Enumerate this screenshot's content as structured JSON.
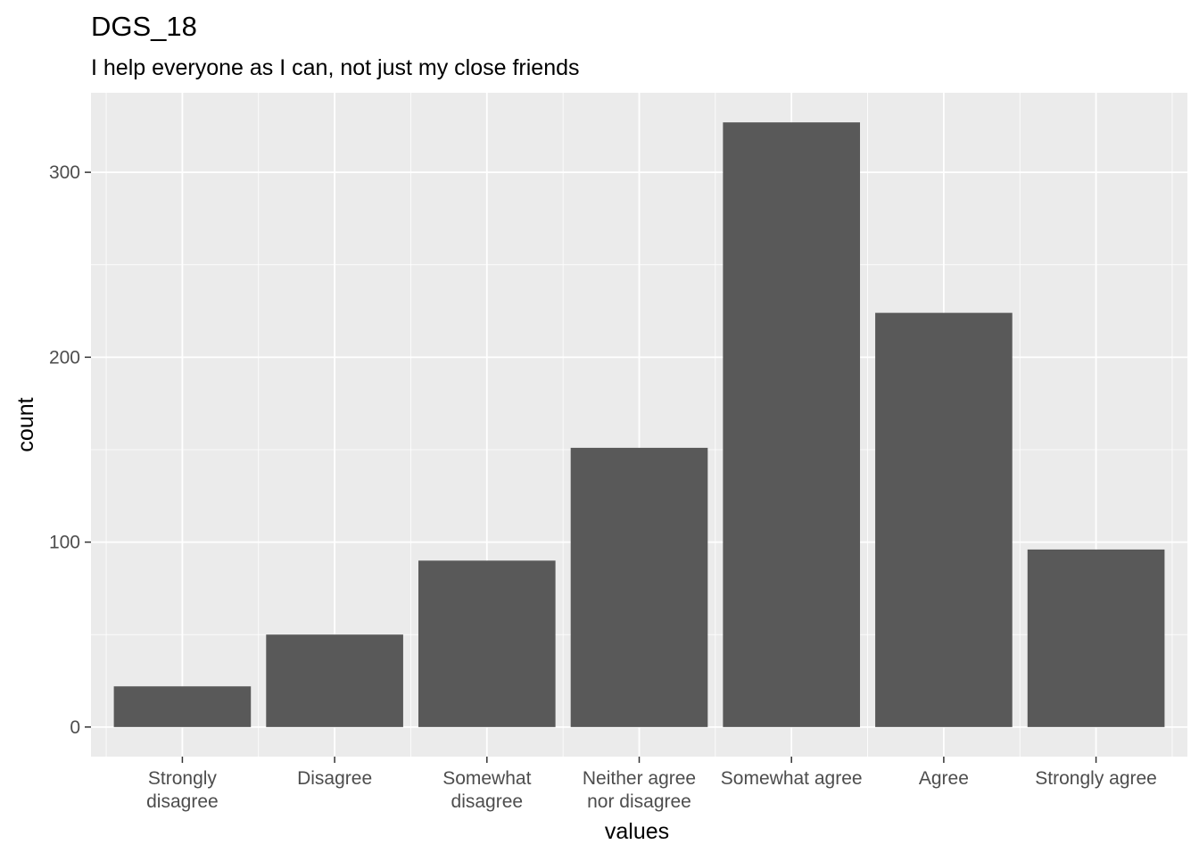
{
  "chart_data": {
    "type": "bar",
    "title": "DGS_18",
    "subtitle": "I help everyone as I can, not just my close friends",
    "xlabel": "values",
    "ylabel": "count",
    "categories": [
      [
        "Strongly",
        "disagree"
      ],
      [
        "Disagree"
      ],
      [
        "Somewhat",
        "disagree"
      ],
      [
        "Neither agree",
        "nor disagree"
      ],
      [
        "Somewhat agree"
      ],
      [
        "Agree"
      ],
      [
        "Strongly agree"
      ]
    ],
    "values": [
      22,
      50,
      90,
      151,
      327,
      224,
      96
    ],
    "ylim": [
      -16,
      343
    ],
    "yticks": [
      0,
      100,
      200,
      300
    ],
    "ytick_labels": [
      "0",
      "100",
      "200",
      "300"
    ],
    "grid": true,
    "colors": {
      "panel_background": "#ebebeb",
      "grid_major": "#ffffff",
      "bar_fill": "#595959",
      "tick_text": "#4d4d4d",
      "tick_mark": "#333333"
    }
  }
}
